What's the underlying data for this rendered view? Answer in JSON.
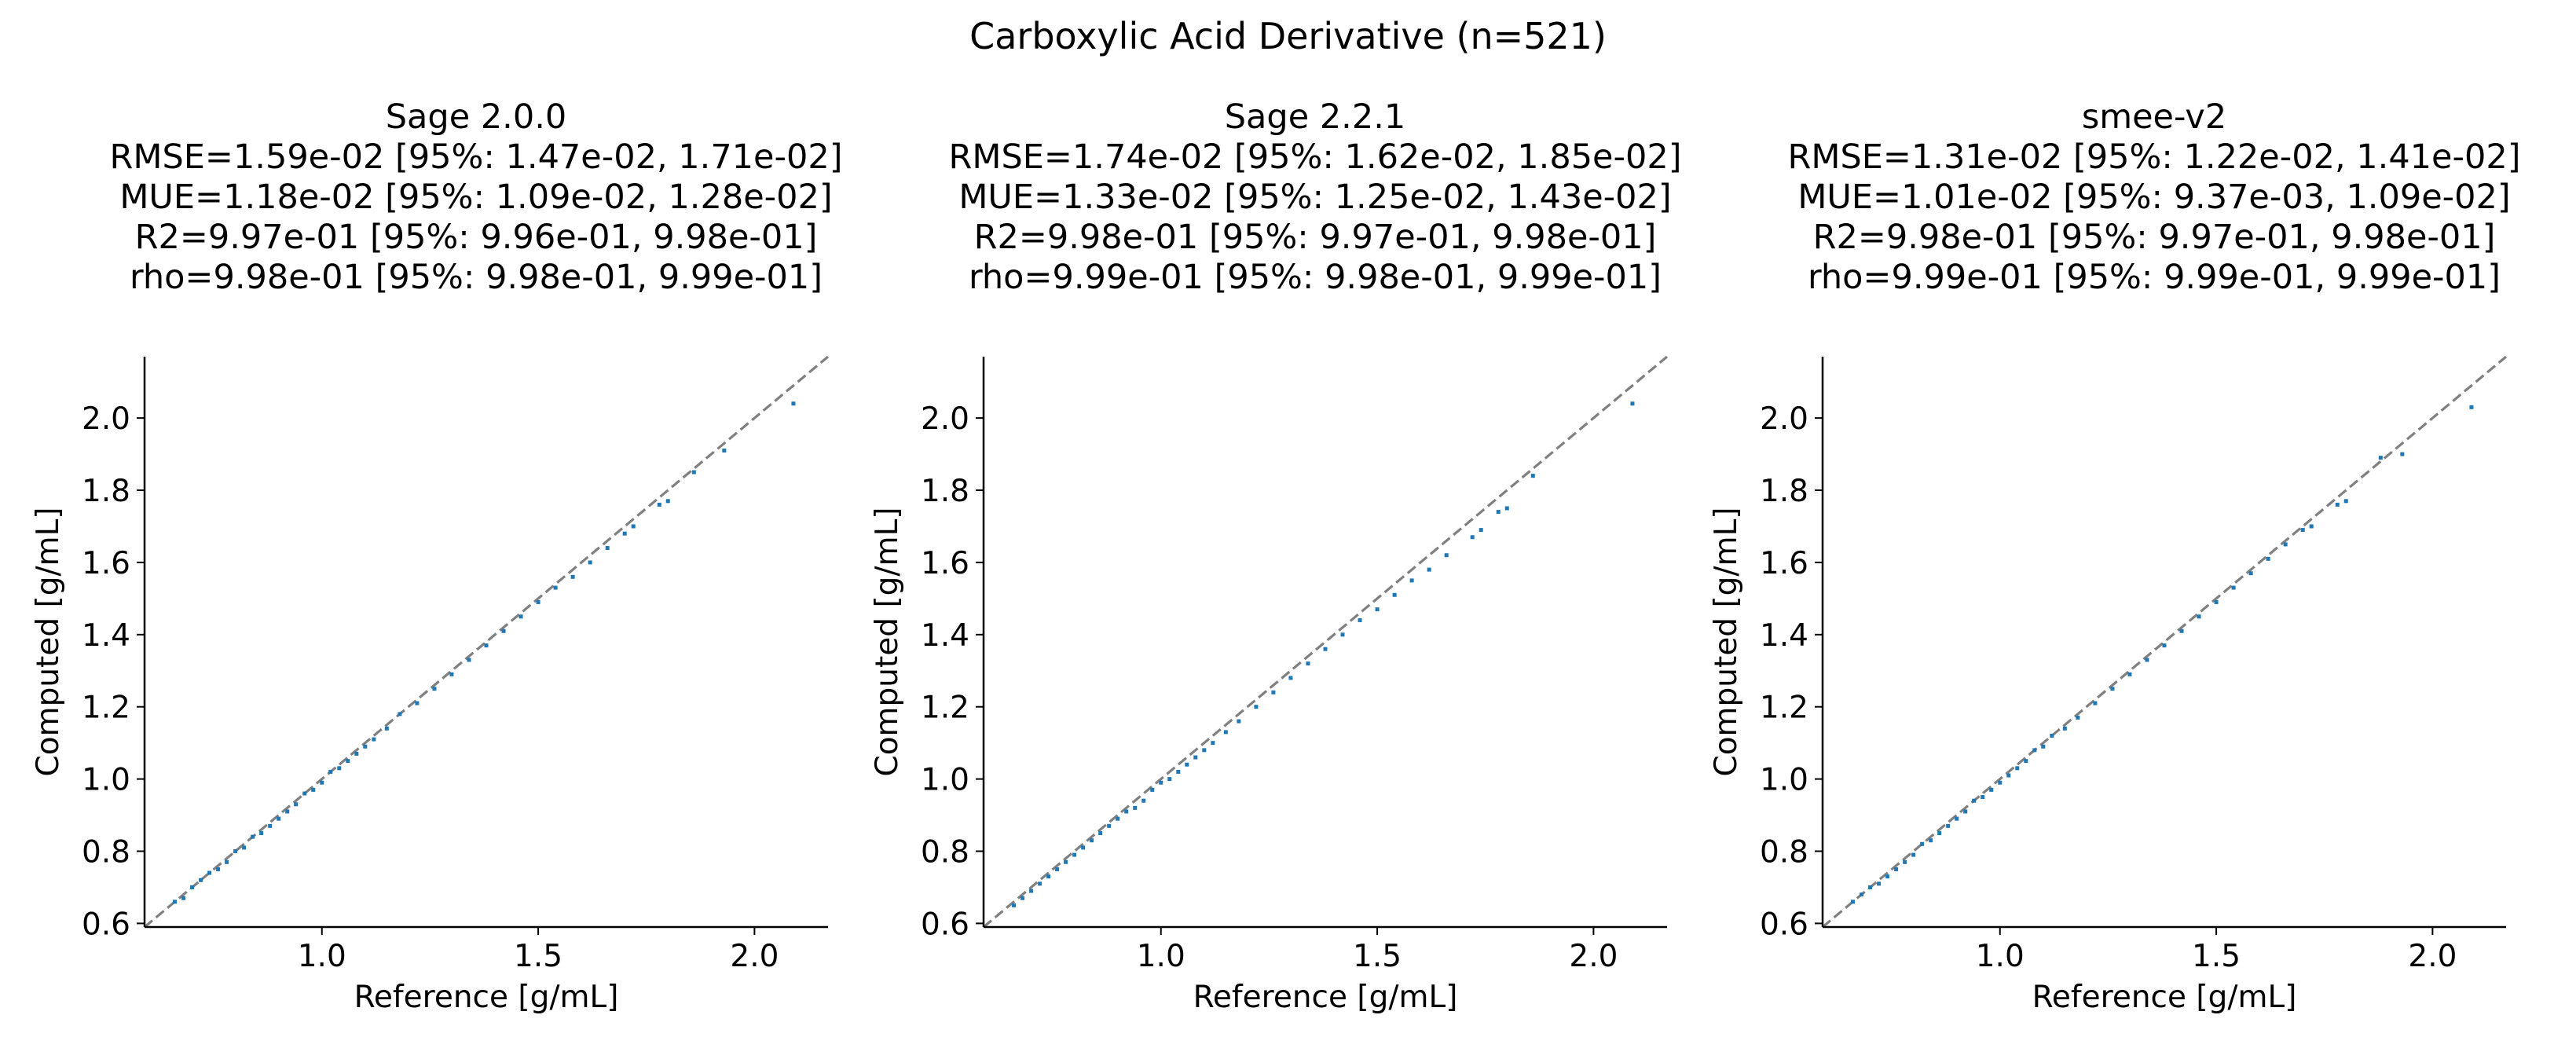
{
  "figure": {
    "suptitle": "Carboxylic Acid Derivative (n=521)"
  },
  "colors": {
    "points": "#1f77b4",
    "diagonal": "#808080",
    "axes": "#000000"
  },
  "chart_data": [
    {
      "type": "scatter",
      "title_lines": [
        "Sage 2.0.0",
        "RMSE=1.59e-02 [95%: 1.47e-02, 1.71e-02]",
        "MUE=1.18e-02 [95%: 1.09e-02, 1.28e-02]",
        "R2=9.97e-01 [95%: 9.96e-01, 9.98e-01]",
        "rho=9.98e-01 [95%: 9.98e-01, 9.99e-01]"
      ],
      "xlabel": "Reference [g/mL]",
      "ylabel": "Computed [g/mL]",
      "xlim": [
        0.59,
        2.17
      ],
      "ylim": [
        0.59,
        2.17
      ],
      "xticks": [
        1.0,
        1.5,
        2.0
      ],
      "xtick_labels": [
        "1.0",
        "1.5",
        "2.0"
      ],
      "yticks": [
        0.6,
        0.8,
        1.0,
        1.2,
        1.4,
        1.6,
        1.8,
        2.0
      ],
      "ytick_labels": [
        "0.6",
        "0.8",
        "1.0",
        "1.2",
        "1.4",
        "1.6",
        "1.8",
        "2.0"
      ],
      "diagonal": "y = x",
      "points": [
        [
          0.66,
          0.66
        ],
        [
          0.68,
          0.67
        ],
        [
          0.7,
          0.7
        ],
        [
          0.72,
          0.72
        ],
        [
          0.74,
          0.74
        ],
        [
          0.76,
          0.75
        ],
        [
          0.78,
          0.77
        ],
        [
          0.8,
          0.8
        ],
        [
          0.82,
          0.81
        ],
        [
          0.84,
          0.84
        ],
        [
          0.86,
          0.85
        ],
        [
          0.88,
          0.87
        ],
        [
          0.9,
          0.89
        ],
        [
          0.92,
          0.91
        ],
        [
          0.94,
          0.93
        ],
        [
          0.96,
          0.96
        ],
        [
          0.98,
          0.97
        ],
        [
          1.0,
          0.99
        ],
        [
          1.02,
          1.02
        ],
        [
          1.04,
          1.03
        ],
        [
          1.06,
          1.05
        ],
        [
          1.08,
          1.07
        ],
        [
          1.1,
          1.09
        ],
        [
          1.12,
          1.11
        ],
        [
          1.15,
          1.14
        ],
        [
          1.18,
          1.18
        ],
        [
          1.22,
          1.21
        ],
        [
          1.26,
          1.25
        ],
        [
          1.3,
          1.29
        ],
        [
          1.34,
          1.33
        ],
        [
          1.38,
          1.37
        ],
        [
          1.42,
          1.41
        ],
        [
          1.46,
          1.45
        ],
        [
          1.5,
          1.49
        ],
        [
          1.54,
          1.53
        ],
        [
          1.58,
          1.56
        ],
        [
          1.62,
          1.6
        ],
        [
          1.66,
          1.64
        ],
        [
          1.7,
          1.68
        ],
        [
          1.72,
          1.7
        ],
        [
          1.78,
          1.76
        ],
        [
          1.8,
          1.77
        ],
        [
          1.86,
          1.85
        ],
        [
          1.93,
          1.91
        ],
        [
          2.09,
          2.04
        ]
      ]
    },
    {
      "type": "scatter",
      "title_lines": [
        "Sage 2.2.1",
        "RMSE=1.74e-02 [95%: 1.62e-02, 1.85e-02]",
        "MUE=1.33e-02 [95%: 1.25e-02, 1.43e-02]",
        "R2=9.98e-01 [95%: 9.97e-01, 9.98e-01]",
        "rho=9.99e-01 [95%: 9.98e-01, 9.99e-01]"
      ],
      "xlabel": "Reference [g/mL]",
      "ylabel": "Computed [g/mL]",
      "xlim": [
        0.59,
        2.17
      ],
      "ylim": [
        0.59,
        2.17
      ],
      "xticks": [
        1.0,
        1.5,
        2.0
      ],
      "xtick_labels": [
        "1.0",
        "1.5",
        "2.0"
      ],
      "yticks": [
        0.6,
        0.8,
        1.0,
        1.2,
        1.4,
        1.6,
        1.8,
        2.0
      ],
      "ytick_labels": [
        "0.6",
        "0.8",
        "1.0",
        "1.2",
        "1.4",
        "1.6",
        "1.8",
        "2.0"
      ],
      "diagonal": "y = x",
      "points": [
        [
          0.66,
          0.65
        ],
        [
          0.68,
          0.67
        ],
        [
          0.7,
          0.69
        ],
        [
          0.72,
          0.71
        ],
        [
          0.74,
          0.73
        ],
        [
          0.76,
          0.75
        ],
        [
          0.78,
          0.77
        ],
        [
          0.8,
          0.79
        ],
        [
          0.82,
          0.81
        ],
        [
          0.84,
          0.83
        ],
        [
          0.86,
          0.85
        ],
        [
          0.88,
          0.87
        ],
        [
          0.9,
          0.89
        ],
        [
          0.92,
          0.91
        ],
        [
          0.94,
          0.92
        ],
        [
          0.96,
          0.94
        ],
        [
          0.98,
          0.97
        ],
        [
          1.0,
          0.99
        ],
        [
          1.02,
          1.0
        ],
        [
          1.04,
          1.02
        ],
        [
          1.06,
          1.04
        ],
        [
          1.08,
          1.06
        ],
        [
          1.1,
          1.08
        ],
        [
          1.12,
          1.1
        ],
        [
          1.15,
          1.13
        ],
        [
          1.18,
          1.16
        ],
        [
          1.22,
          1.2
        ],
        [
          1.26,
          1.24
        ],
        [
          1.3,
          1.28
        ],
        [
          1.34,
          1.32
        ],
        [
          1.38,
          1.36
        ],
        [
          1.42,
          1.4
        ],
        [
          1.46,
          1.44
        ],
        [
          1.5,
          1.47
        ],
        [
          1.54,
          1.51
        ],
        [
          1.58,
          1.55
        ],
        [
          1.62,
          1.58
        ],
        [
          1.66,
          1.62
        ],
        [
          1.72,
          1.67
        ],
        [
          1.74,
          1.69
        ],
        [
          1.78,
          1.74
        ],
        [
          1.8,
          1.75
        ],
        [
          1.86,
          1.84
        ],
        [
          2.09,
          2.04
        ]
      ]
    },
    {
      "type": "scatter",
      "title_lines": [
        "smee-v2",
        "RMSE=1.31e-02 [95%: 1.22e-02, 1.41e-02]",
        "MUE=1.01e-02 [95%: 9.37e-03, 1.09e-02]",
        "R2=9.98e-01 [95%: 9.97e-01, 9.98e-01]",
        "rho=9.99e-01 [95%: 9.99e-01, 9.99e-01]"
      ],
      "xlabel": "Reference [g/mL]",
      "ylabel": "Computed [g/mL]",
      "xlim": [
        0.59,
        2.17
      ],
      "ylim": [
        0.59,
        2.17
      ],
      "xticks": [
        1.0,
        1.5,
        2.0
      ],
      "xtick_labels": [
        "1.0",
        "1.5",
        "2.0"
      ],
      "yticks": [
        0.6,
        0.8,
        1.0,
        1.2,
        1.4,
        1.6,
        1.8,
        2.0
      ],
      "ytick_labels": [
        "0.6",
        "0.8",
        "1.0",
        "1.2",
        "1.4",
        "1.6",
        "1.8",
        "2.0"
      ],
      "diagonal": "y = x",
      "points": [
        [
          0.66,
          0.66
        ],
        [
          0.68,
          0.68
        ],
        [
          0.7,
          0.7
        ],
        [
          0.72,
          0.71
        ],
        [
          0.74,
          0.73
        ],
        [
          0.76,
          0.75
        ],
        [
          0.78,
          0.77
        ],
        [
          0.8,
          0.79
        ],
        [
          0.82,
          0.82
        ],
        [
          0.84,
          0.83
        ],
        [
          0.86,
          0.85
        ],
        [
          0.88,
          0.87
        ],
        [
          0.9,
          0.89
        ],
        [
          0.92,
          0.91
        ],
        [
          0.94,
          0.94
        ],
        [
          0.96,
          0.95
        ],
        [
          0.98,
          0.97
        ],
        [
          1.0,
          0.99
        ],
        [
          1.02,
          1.01
        ],
        [
          1.04,
          1.03
        ],
        [
          1.06,
          1.05
        ],
        [
          1.08,
          1.08
        ],
        [
          1.1,
          1.09
        ],
        [
          1.12,
          1.12
        ],
        [
          1.15,
          1.14
        ],
        [
          1.18,
          1.17
        ],
        [
          1.22,
          1.21
        ],
        [
          1.26,
          1.25
        ],
        [
          1.3,
          1.29
        ],
        [
          1.34,
          1.33
        ],
        [
          1.38,
          1.37
        ],
        [
          1.42,
          1.41
        ],
        [
          1.46,
          1.45
        ],
        [
          1.5,
          1.49
        ],
        [
          1.54,
          1.53
        ],
        [
          1.58,
          1.57
        ],
        [
          1.62,
          1.61
        ],
        [
          1.66,
          1.65
        ],
        [
          1.7,
          1.69
        ],
        [
          1.72,
          1.7
        ],
        [
          1.78,
          1.76
        ],
        [
          1.8,
          1.77
        ],
        [
          1.88,
          1.89
        ],
        [
          1.93,
          1.9
        ],
        [
          2.09,
          2.03
        ]
      ]
    }
  ]
}
